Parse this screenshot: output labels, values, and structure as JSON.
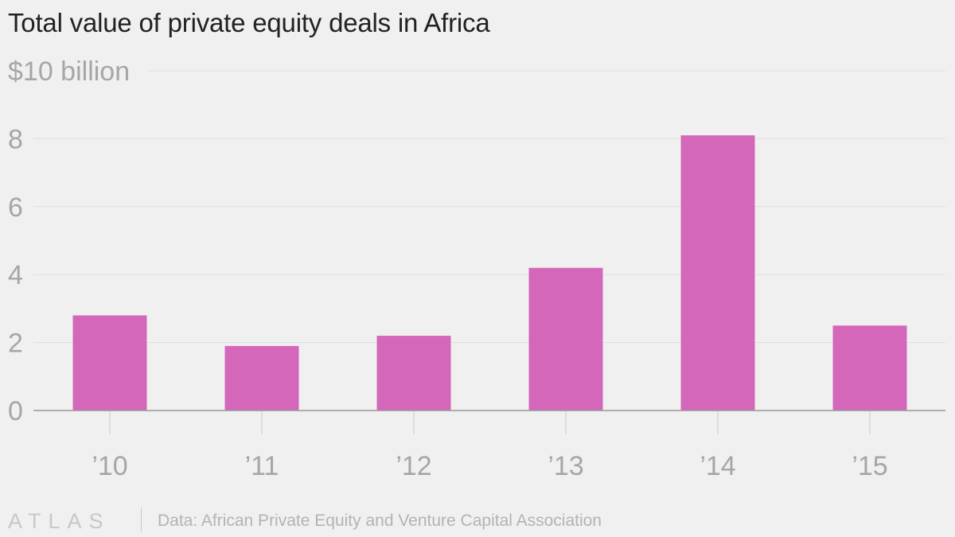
{
  "chart_title": "Total value of private equity deals in Africa",
  "footer": {
    "brand": "ATLAS",
    "source": "Data: African Private Equity and Venture Capital Association"
  },
  "colors": {
    "bar": "#d467b9",
    "grid": "#dedede",
    "axis": "#999999",
    "tick_text": "#a6a6a6"
  },
  "chart_data": {
    "type": "bar",
    "title": "Total value of private equity deals in Africa",
    "xlabel": "",
    "ylabel": "",
    "categories": [
      "’10",
      "’11",
      "’12",
      "’13",
      "’14",
      "’15"
    ],
    "values": [
      2.8,
      1.9,
      2.2,
      4.2,
      8.1,
      2.5
    ],
    "ylim": [
      0,
      10
    ],
    "yticks": [
      0,
      2,
      4,
      6,
      8,
      10
    ],
    "ytick_labels": [
      "0",
      "2",
      "4",
      "6",
      "8",
      "$10 billion"
    ],
    "grid": true,
    "legend": "none"
  }
}
